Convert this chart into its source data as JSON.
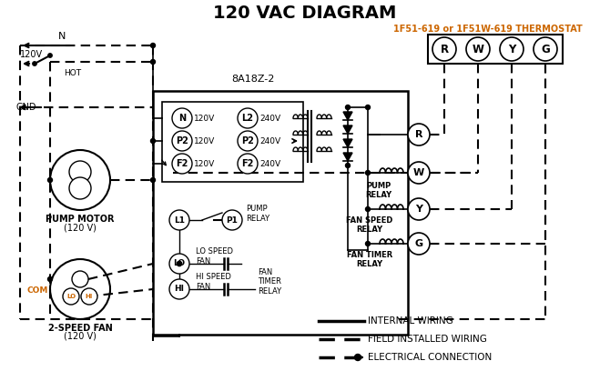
{
  "title": "120 VAC DIAGRAM",
  "title_color": "#1a1a1a",
  "title_fontsize": 14,
  "thermostat_label": "1F51-619 or 1F51W-619 THERMOSTAT",
  "thermostat_color": "#cc6600",
  "control_box_label": "8A18Z-2",
  "bg_color": "#ffffff",
  "line_color": "#000000",
  "orange_color": "#cc6600",
  "terminal_labels_left": [
    "N",
    "P2",
    "F2"
  ],
  "terminal_voltages_left": [
    "120V",
    "120V",
    "120V"
  ],
  "terminal_labels_right": [
    "L2",
    "P2",
    "F2"
  ],
  "terminal_voltages_right": [
    "240V",
    "240V",
    "240V"
  ]
}
